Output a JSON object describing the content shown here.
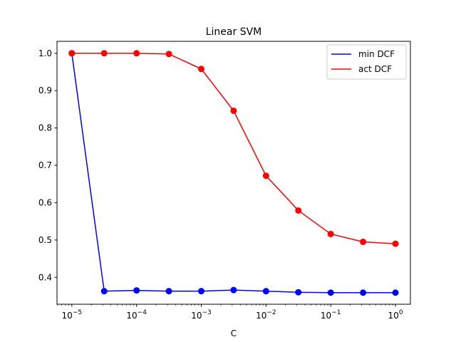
{
  "chart_data": {
    "type": "line",
    "title": "Linear SVM",
    "xlabel": "C",
    "ylabel": "",
    "x_scale": "log",
    "x": [
      1e-05,
      3.16e-05,
      0.0001,
      0.000316,
      0.001,
      0.00316,
      0.01,
      0.0316,
      0.1,
      0.316,
      1
    ],
    "xlim": [
      5.9e-06,
      1.7
    ],
    "ylim": [
      0.328,
      1.032
    ],
    "x_ticks": [
      {
        "value": 1e-05,
        "base": "10",
        "exp": "−5"
      },
      {
        "value": 0.0001,
        "base": "10",
        "exp": "−4"
      },
      {
        "value": 0.001,
        "base": "10",
        "exp": "−3"
      },
      {
        "value": 0.01,
        "base": "10",
        "exp": "−2"
      },
      {
        "value": 0.1,
        "base": "10",
        "exp": "−1"
      },
      {
        "value": 1,
        "base": "10",
        "exp": "0"
      }
    ],
    "y_ticks": [
      {
        "value": 0.4,
        "label": "0.4"
      },
      {
        "value": 0.5,
        "label": "0.5"
      },
      {
        "value": 0.6,
        "label": "0.6"
      },
      {
        "value": 0.7,
        "label": "0.7"
      },
      {
        "value": 0.8,
        "label": "0.8"
      },
      {
        "value": 0.9,
        "label": "0.9"
      },
      {
        "value": 1.0,
        "label": "1.0"
      }
    ],
    "grid": false,
    "legend_position": "top-right",
    "series": [
      {
        "name": "min DCF",
        "color": "#0000ff",
        "values": [
          1.0,
          0.363,
          0.365,
          0.363,
          0.363,
          0.366,
          0.363,
          0.36,
          0.359,
          0.359,
          0.359
        ]
      },
      {
        "name": "act DCF",
        "color": "#ff0000",
        "values": [
          1.0,
          1.0,
          1.0,
          0.998,
          0.958,
          0.846,
          0.672,
          0.579,
          0.516,
          0.495,
          0.49
        ]
      }
    ]
  }
}
